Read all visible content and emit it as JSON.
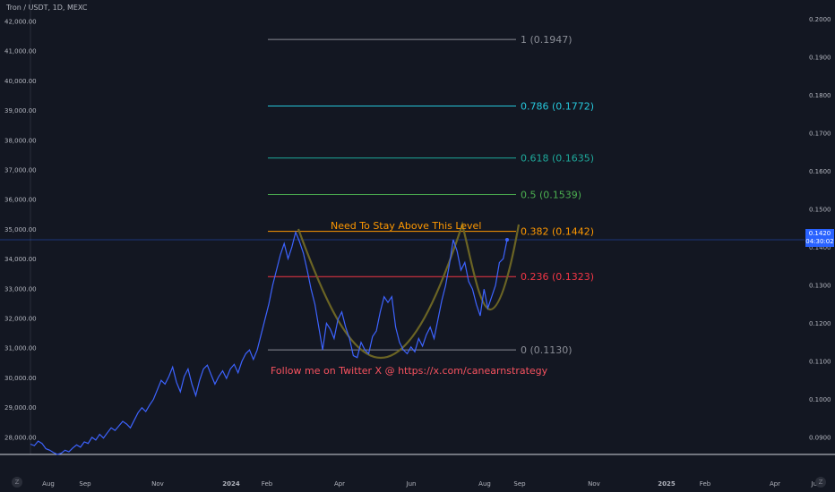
{
  "header": {
    "title": "Tron / USDT, 1D, MEXC"
  },
  "price_tag": {
    "price": "0.1420",
    "countdown": "04:30:02"
  },
  "corner_buttons": {
    "left": "Z",
    "right": "Z"
  },
  "colors": {
    "background": "#131722",
    "price_line": "#3d63ff",
    "pattern": "#6b6424",
    "fib_1": "#8a8d96",
    "fib_0786": "#26c6da",
    "fib_0618": "#1ea89a",
    "fib_05": "#4caf50",
    "fib_0382": "#ff9800",
    "fib_0236": "#f23645",
    "fib_0": "#8a8d96",
    "annotation": "#f7525f"
  },
  "annotations": {
    "stay_above": "Need To Stay Above This Level",
    "follow": "Follow me on Twitter X @ https://x.com/canearnstrategy"
  },
  "chart_data": {
    "type": "line",
    "title": "Tron / USDT, 1D, MEXC",
    "x_ticks": [
      "Aug",
      "Sep",
      "Nov",
      "2024",
      "Feb",
      "Apr",
      "Jun",
      "Aug",
      "Sep",
      "Nov",
      "2025",
      "Feb",
      "Apr",
      "Jun"
    ],
    "y_left_ticks": [
      "42,000.00",
      "41,000.00",
      "40,000.00",
      "39,000.00",
      "38,000.00",
      "37,000.00",
      "36,000.00",
      "35,000.00",
      "34,000.00",
      "33,000.00",
      "32,000.00",
      "31,000.00",
      "30,000.00",
      "29,000.00",
      "28,000.00"
    ],
    "y_right_ticks": [
      "0.2000",
      "0.1900",
      "0.1800",
      "0.1700",
      "0.1600",
      "0.1500",
      "0.1400",
      "0.1300",
      "0.1200",
      "0.1100",
      "0.1000",
      "0.0900"
    ],
    "y_right_range": [
      0.0855,
      0.2025
    ],
    "fib_levels": [
      {
        "label": "1 (0.1947)",
        "value": 0.1947,
        "color_key": "fib_1"
      },
      {
        "label": "0.786 (0.1772)",
        "value": 0.1772,
        "color_key": "fib_0786"
      },
      {
        "label": "0.618 (0.1635)",
        "value": 0.1635,
        "color_key": "fib_0618"
      },
      {
        "label": "0.5 (0.1539)",
        "value": 0.1539,
        "color_key": "fib_05"
      },
      {
        "label": "0.382 (0.1442)",
        "value": 0.1442,
        "color_key": "fib_0382"
      },
      {
        "label": "0.236 (0.1323)",
        "value": 0.1323,
        "color_key": "fib_0236"
      },
      {
        "label": "0 (0.1130)",
        "value": 0.113,
        "color_key": "fib_0"
      }
    ],
    "series": [
      {
        "values": [
          0.0882,
          0.0878,
          0.089,
          0.0884,
          0.087,
          0.0866,
          0.086,
          0.0855,
          0.0858,
          0.0866,
          0.0862,
          0.0872,
          0.088,
          0.0874,
          0.0888,
          0.0884,
          0.09,
          0.0893,
          0.0908,
          0.0898,
          0.0912,
          0.0925,
          0.0918,
          0.093,
          0.0942,
          0.0935,
          0.0925,
          0.0945,
          0.0965,
          0.0978,
          0.0968,
          0.0985,
          0.1,
          0.1025,
          0.105,
          0.104,
          0.106,
          0.1085,
          0.1045,
          0.102,
          0.106,
          0.108,
          0.104,
          0.101,
          0.105,
          0.108,
          0.109,
          0.1065,
          0.104,
          0.106,
          0.1075,
          0.1055,
          0.108,
          0.1092,
          0.107,
          0.11,
          0.112,
          0.113,
          0.1105,
          0.113,
          0.117,
          0.121,
          0.125,
          0.13,
          0.134,
          0.138,
          0.141,
          0.137,
          0.14,
          0.144,
          0.1415,
          0.1385,
          0.134,
          0.129,
          0.125,
          0.119,
          0.113,
          0.12,
          0.1185,
          0.116,
          0.121,
          0.123,
          0.119,
          0.116,
          0.1115,
          0.111,
          0.115,
          0.113,
          0.112,
          0.1165,
          0.118,
          0.123,
          0.127,
          0.1255,
          0.127,
          0.119,
          0.115,
          0.113,
          0.112,
          0.1138,
          0.1125,
          0.116,
          0.114,
          0.117,
          0.119,
          0.116,
          0.121,
          0.126,
          0.13,
          0.1355,
          0.142,
          0.139,
          0.134,
          0.136,
          0.131,
          0.129,
          0.125,
          0.122,
          0.129,
          0.124,
          0.127,
          0.13,
          0.136,
          0.137,
          0.142
        ]
      }
    ],
    "last_value": 0.142
  }
}
